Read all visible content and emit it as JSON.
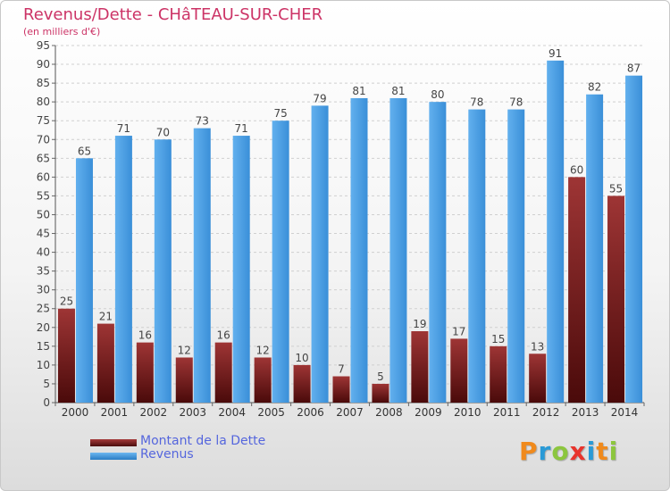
{
  "header": {
    "title": "Revenus/Dette - CHâTEAU-SUR-CHER",
    "subtitle": "(en milliers d'€)"
  },
  "colors": {
    "title": "#cc3366",
    "dette": "#7a1f1f",
    "revenus": "#3a8fd8",
    "legend_text": "#5566dd"
  },
  "legend": {
    "items": [
      {
        "label": "Montant de la Dette",
        "color": "#7a1f1f"
      },
      {
        "label": "Revenus",
        "color": "#3a8fd8"
      }
    ]
  },
  "logo": {
    "text": "Proxiti",
    "letters": [
      {
        "ch": "P",
        "color": "#f08a1c"
      },
      {
        "ch": "r",
        "color": "#2a9ad6"
      },
      {
        "ch": "o",
        "color": "#8cc63e"
      },
      {
        "ch": "x",
        "color": "#e8342c"
      },
      {
        "ch": "i",
        "color": "#2a9ad6"
      },
      {
        "ch": "t",
        "color": "#f08a1c"
      },
      {
        "ch": "i",
        "color": "#8cc63e"
      }
    ]
  },
  "chart_data": {
    "type": "bar",
    "title": "Revenus/Dette - CHâTEAU-SUR-CHER",
    "subtitle": "(en milliers d'€)",
    "categories": [
      "2000",
      "2001",
      "2002",
      "2003",
      "2004",
      "2005",
      "2006",
      "2007",
      "2008",
      "2009",
      "2010",
      "2011",
      "2012",
      "2013",
      "2014"
    ],
    "series": [
      {
        "name": "Montant de la Dette",
        "values": [
          25,
          21,
          16,
          12,
          16,
          12,
          10,
          7,
          5,
          19,
          17,
          15,
          13,
          60,
          55
        ]
      },
      {
        "name": "Revenus",
        "values": [
          65,
          71,
          70,
          73,
          71,
          75,
          79,
          81,
          81,
          80,
          78,
          78,
          91,
          82,
          87
        ]
      }
    ],
    "ylim": [
      0,
      95
    ],
    "yticks": [
      0,
      5,
      10,
      15,
      20,
      25,
      30,
      35,
      40,
      45,
      50,
      55,
      60,
      65,
      70,
      75,
      80,
      85,
      90,
      95
    ],
    "grid": true,
    "legend_position": "bottom-left"
  }
}
